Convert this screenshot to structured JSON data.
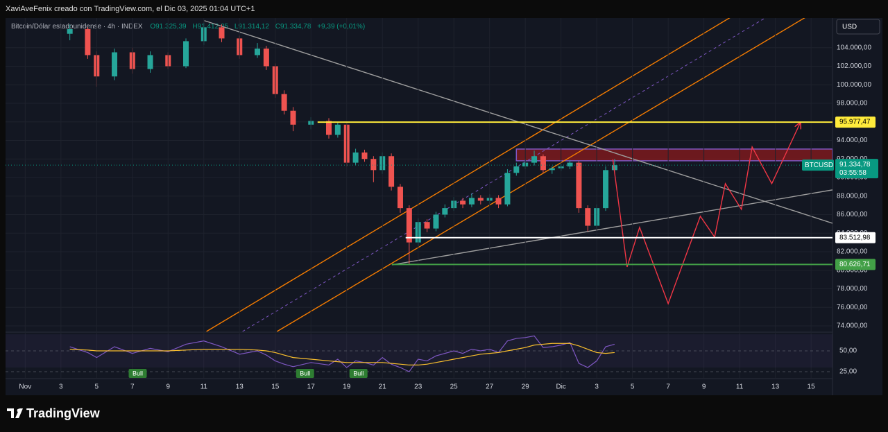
{
  "header": "XaviAveFenix creado con TradingView.com, el Dic 03, 2025 01:04 UTC+1",
  "legend": {
    "symbol": "Bitcoin/Dólar estadounidense · 4h · INDEX",
    "open": "O91.325,39",
    "high": "H91.412,25",
    "low": "L91.314,12",
    "close": "C91.334,78",
    "change": "+9,39 (+0,01%)"
  },
  "currency": "USD",
  "brand": "TradingView",
  "chart_data": {
    "type": "candlestick",
    "up_color": "#26a69a",
    "down_color": "#ef5350",
    "x": [
      2.5,
      3.5,
      4,
      5,
      6,
      7,
      8,
      9,
      10,
      11,
      12,
      13,
      13.5,
      14,
      14.5,
      15,
      16,
      17,
      17.5,
      18,
      18.5,
      19,
      19.5,
      20,
      20.5,
      21,
      21.5,
      22,
      22.5,
      23,
      23.5,
      24,
      24.5,
      25,
      25.5,
      26,
      26.5,
      27,
      27.5,
      28,
      28.5,
      29,
      29.5,
      30,
      30.5,
      31,
      31.5,
      32,
      32.5,
      33
    ],
    "open": [
      105500,
      106000,
      103200,
      100900,
      103500,
      101700,
      103200,
      102000,
      104700,
      106200,
      105000,
      103200,
      103900,
      102000,
      99000,
      97200,
      95700,
      96100,
      94600,
      95700,
      91600,
      92700,
      92000,
      90800,
      92300,
      89000,
      86700,
      83000,
      85200,
      84500,
      86000,
      86700,
      87500,
      87100,
      87800,
      87500,
      87800,
      87100,
      90500,
      91200,
      91600,
      92300,
      90800,
      91000,
      91200,
      91600,
      86700,
      84800,
      86700,
      90800
    ],
    "high": [
      106500,
      106200,
      103600,
      103900,
      104000,
      103600,
      103500,
      105000,
      106700,
      106500,
      105300,
      104500,
      104200,
      102300,
      99400,
      97600,
      96500,
      96400,
      96000,
      95900,
      93100,
      93000,
      92300,
      92700,
      92600,
      89300,
      87000,
      85600,
      85500,
      86300,
      87100,
      87900,
      87800,
      88300,
      88100,
      88200,
      88100,
      90900,
      91600,
      92000,
      92900,
      92500,
      91200,
      91500,
      91900,
      91800,
      87000,
      87100,
      91200,
      92000
    ],
    "low": [
      104800,
      102800,
      99800,
      100500,
      101200,
      101300,
      101700,
      101800,
      104300,
      104600,
      102800,
      102900,
      101600,
      98600,
      96800,
      95000,
      95200,
      94200,
      94300,
      91200,
      91300,
      91700,
      89500,
      90400,
      88600,
      86200,
      80600,
      82600,
      84100,
      84200,
      85700,
      86400,
      86700,
      86800,
      87100,
      87100,
      86700,
      86900,
      90200,
      90900,
      91300,
      90500,
      90400,
      90700,
      90900,
      86200,
      84200,
      84500,
      86400,
      90500
    ],
    "close": [
      106000,
      103200,
      100900,
      103500,
      101700,
      103200,
      102000,
      104700,
      106200,
      105000,
      103200,
      103900,
      102000,
      99000,
      97200,
      95700,
      96100,
      94600,
      95700,
      91600,
      92700,
      92000,
      90800,
      92300,
      89000,
      86700,
      83000,
      85200,
      84500,
      86000,
      86700,
      87500,
      87100,
      87800,
      87500,
      87800,
      87100,
      90500,
      91200,
      91600,
      92300,
      90800,
      91000,
      91200,
      91600,
      86700,
      84800,
      86700,
      90800,
      91335
    ],
    "xlim": [
      -1.1,
      45.2
    ],
    "xticks": [
      {
        "value": 0,
        "label": "Nov"
      },
      {
        "value": 2,
        "label": "3"
      },
      {
        "value": 4,
        "label": "5"
      },
      {
        "value": 6,
        "label": "7"
      },
      {
        "value": 8,
        "label": "9"
      },
      {
        "value": 10,
        "label": "11"
      },
      {
        "value": 12,
        "label": "13"
      },
      {
        "value": 14,
        "label": "15"
      },
      {
        "value": 16,
        "label": "17"
      },
      {
        "value": 18,
        "label": "19"
      },
      {
        "value": 20,
        "label": "21"
      },
      {
        "value": 22,
        "label": "23"
      },
      {
        "value": 24,
        "label": "25"
      },
      {
        "value": 26,
        "label": "27"
      },
      {
        "value": 28,
        "label": "29"
      },
      {
        "value": 30,
        "label": "Dic"
      },
      {
        "value": 32,
        "label": "3"
      },
      {
        "value": 34,
        "label": "5"
      },
      {
        "value": 36,
        "label": "7"
      },
      {
        "value": 38,
        "label": "9"
      },
      {
        "value": 40,
        "label": "11"
      },
      {
        "value": 42,
        "label": "13"
      },
      {
        "value": 44,
        "label": "15"
      }
    ],
    "ylim": [
      73400,
      106900
    ],
    "yticks": [
      {
        "value": 74000,
        "label": "74.000,00"
      },
      {
        "value": 76000,
        "label": "76.000,00"
      },
      {
        "value": 78000,
        "label": "78.000,00"
      },
      {
        "value": 80000,
        "label": "80.000,00"
      },
      {
        "value": 82000,
        "label": "82.000,00"
      },
      {
        "value": 84000,
        "label": "84.000,00"
      },
      {
        "value": 86000,
        "label": "86.000,00"
      },
      {
        "value": 88000,
        "label": "88.000,00"
      },
      {
        "value": 90000,
        "label": "90.000,00"
      },
      {
        "value": 92000,
        "label": "92.000,00"
      },
      {
        "value": 94000,
        "label": "94.000,00"
      },
      {
        "value": 96000,
        "label": "96.000,00"
      },
      {
        "value": 98000,
        "label": "98.000,00"
      },
      {
        "value": 100000,
        "label": "100.000,00"
      },
      {
        "value": 102000,
        "label": "102.000,00"
      },
      {
        "value": 104000,
        "label": "104.000,00"
      }
    ],
    "grid": true,
    "levels": [
      {
        "value": 95977.47,
        "label": "95.977,47",
        "color": "#ffeb3b",
        "x0": 16.37
      },
      {
        "value": 83512.98,
        "label": "83.512,98",
        "color": "#ffffff",
        "x0": 21.3
      },
      {
        "value": 80626.71,
        "label": "80.626,71",
        "color": "#43a047",
        "x0": 20.53
      }
    ],
    "last_price": {
      "symbol": "BTCUSD",
      "value": 91334.78,
      "label": "91.334,78",
      "countdown": "03:55:58",
      "color": "#089981"
    },
    "zone": {
      "x0": 27.5,
      "y0": 91805,
      "y1": 93070,
      "color": "#b71c1c",
      "border": "#7e57c2"
    },
    "drawings": [
      {
        "color": "#f57c00",
        "dash": false,
        "x": [
          10.15,
          39.7
        ],
        "y": [
          73400,
          107518
        ]
      },
      {
        "color": "#f57c00",
        "dash": false,
        "x": [
          14.1,
          43.9
        ],
        "y": [
          73400,
          107518
        ]
      },
      {
        "color": "#7e57c2",
        "dash": true,
        "x": [
          12.17,
          41.7
        ],
        "y": [
          73400,
          107518
        ]
      },
      {
        "color": "#9e9e9e",
        "dash": false,
        "x": [
          10.03,
          45.2
        ],
        "y": [
          106918,
          85070
        ]
      },
      {
        "color": "#9e9e9e",
        "dash": false,
        "x": [
          20.53,
          45.2
        ],
        "y": [
          80584,
          88664
        ]
      },
      {
        "color": "#f23645",
        "dash": false,
        "arrow": true,
        "x": [
          32.9,
          33.7,
          34.4,
          36.0,
          37.8,
          38.6,
          39.2,
          40.1,
          40.7,
          41.8,
          43.4
        ],
        "y": [
          91960,
          80360,
          84620,
          76400,
          85820,
          83580,
          89340,
          86570,
          93300,
          89340,
          95920
        ]
      }
    ],
    "rsi": {
      "ylim": [
        17.5,
        71.7
      ],
      "yticks": [
        {
          "value": 50,
          "label": "50,00"
        },
        {
          "value": 25,
          "label": "25,00"
        }
      ],
      "series": [
        {
          "color": "#7e57c2",
          "values": [
            55,
            48,
            42,
            55,
            47,
            53,
            49,
            58,
            62,
            55,
            46,
            50,
            45,
            38,
            34,
            31,
            36,
            33,
            40,
            30,
            38,
            36,
            33,
            42,
            34,
            30,
            25,
            40,
            38,
            44,
            47,
            50,
            47,
            52,
            50,
            52,
            48,
            62,
            65,
            66,
            68,
            54,
            55,
            57,
            60,
            35,
            30,
            38,
            55,
            58
          ]
        },
        {
          "color": "#fbc02d",
          "values": [
            52,
            51,
            50,
            50,
            50,
            50,
            50,
            51,
            52,
            52,
            52,
            51,
            50,
            48,
            45,
            42,
            40,
            38,
            37,
            36,
            36,
            36,
            36,
            36,
            35,
            34,
            33,
            33,
            34,
            36,
            38,
            40,
            42,
            44,
            46,
            47,
            48,
            50,
            52,
            54,
            57,
            58,
            59,
            59,
            59,
            56,
            52,
            48,
            47,
            48
          ]
        }
      ],
      "signals": [
        {
          "x": 6.3,
          "label": "Bull"
        },
        {
          "x": 15.67,
          "label": "Bull"
        },
        {
          "x": 18.66,
          "label": "Bull"
        }
      ]
    }
  }
}
